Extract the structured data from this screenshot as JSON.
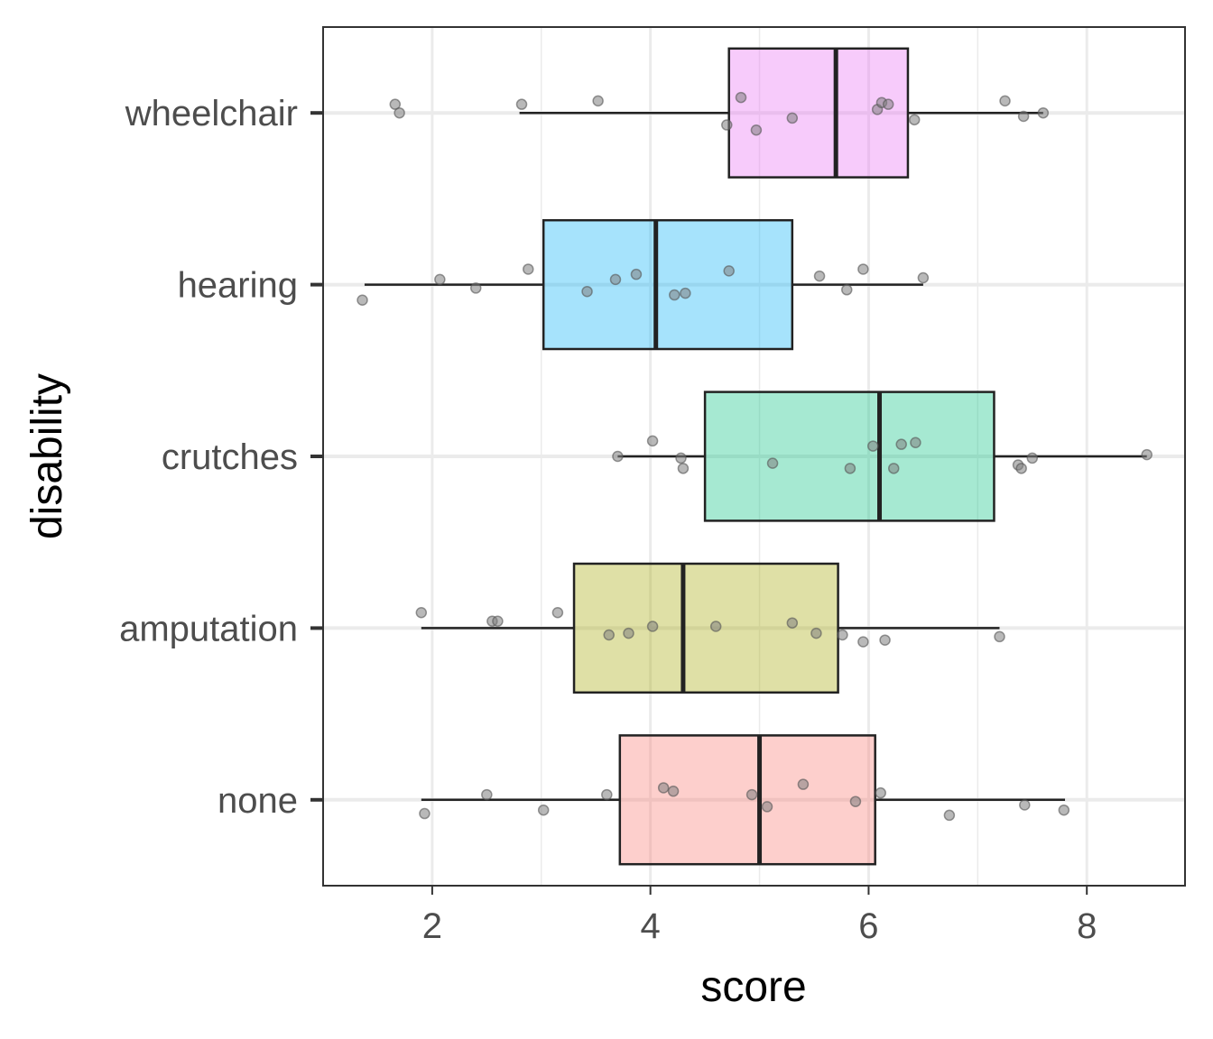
{
  "chart_data": {
    "type": "boxplot",
    "orientation": "horizontal",
    "xlabel": "score",
    "ylabel": "disability",
    "xlim": [
      1.0,
      8.9
    ],
    "xticks": [
      2,
      4,
      6,
      8
    ],
    "grid": true,
    "legend": "none",
    "categories": [
      "none",
      "amputation",
      "crutches",
      "hearing",
      "wheelchair"
    ],
    "series": [
      {
        "category": "none",
        "color": "#F8766D",
        "box": {
          "min": 1.9,
          "q1": 3.72,
          "median": 5.0,
          "q3": 6.06,
          "max": 7.8
        },
        "points": [
          [
            1.93,
            -0.08
          ],
          [
            2.5,
            0.03
          ],
          [
            3.02,
            -0.06
          ],
          [
            3.6,
            0.03
          ],
          [
            4.12,
            0.07
          ],
          [
            4.21,
            0.05
          ],
          [
            4.93,
            0.03
          ],
          [
            5.07,
            -0.04
          ],
          [
            5.4,
            0.09
          ],
          [
            5.88,
            -0.01
          ],
          [
            6.11,
            0.04
          ],
          [
            6.74,
            -0.09
          ],
          [
            7.43,
            -0.03
          ],
          [
            7.79,
            -0.06
          ]
        ]
      },
      {
        "category": "amputation",
        "color": "#A3A500",
        "box": {
          "min": 1.9,
          "q1": 3.3,
          "median": 4.3,
          "q3": 5.72,
          "max": 7.2
        },
        "points": [
          [
            1.9,
            0.09
          ],
          [
            2.55,
            0.04
          ],
          [
            2.6,
            0.04
          ],
          [
            3.15,
            0.09
          ],
          [
            3.62,
            -0.04
          ],
          [
            3.8,
            -0.03
          ],
          [
            4.02,
            0.01
          ],
          [
            4.6,
            0.01
          ],
          [
            5.3,
            0.03
          ],
          [
            5.52,
            -0.03
          ],
          [
            5.76,
            -0.04
          ],
          [
            5.95,
            -0.08
          ],
          [
            6.15,
            -0.07
          ],
          [
            7.2,
            -0.05
          ]
        ]
      },
      {
        "category": "crutches",
        "color": "#00BF7D",
        "box": {
          "min": 3.7,
          "q1": 4.5,
          "median": 6.1,
          "q3": 7.15,
          "max": 8.55
        },
        "points": [
          [
            3.7,
            0.0
          ],
          [
            4.02,
            0.09
          ],
          [
            4.28,
            -0.01
          ],
          [
            4.3,
            -0.07
          ],
          [
            5.12,
            -0.04
          ],
          [
            5.83,
            -0.07
          ],
          [
            6.04,
            0.06
          ],
          [
            6.23,
            -0.07
          ],
          [
            6.3,
            0.07
          ],
          [
            6.43,
            0.08
          ],
          [
            7.37,
            -0.05
          ],
          [
            7.4,
            -0.07
          ],
          [
            7.5,
            -0.01
          ],
          [
            8.55,
            0.01
          ]
        ]
      },
      {
        "category": "hearing",
        "color": "#00B0F6",
        "box": {
          "min": 1.38,
          "q1": 3.02,
          "median": 4.05,
          "q3": 5.3,
          "max": 6.5
        },
        "points": [
          [
            1.36,
            -0.09
          ],
          [
            2.07,
            0.03
          ],
          [
            2.4,
            -0.02
          ],
          [
            2.88,
            0.09
          ],
          [
            3.42,
            -0.04
          ],
          [
            3.68,
            0.03
          ],
          [
            3.87,
            0.06
          ],
          [
            4.22,
            -0.06
          ],
          [
            4.32,
            -0.05
          ],
          [
            4.72,
            0.08
          ],
          [
            5.55,
            0.05
          ],
          [
            5.8,
            -0.03
          ],
          [
            5.95,
            0.09
          ],
          [
            6.5,
            0.04
          ]
        ]
      },
      {
        "category": "wheelchair",
        "color": "#E76BF3",
        "box": {
          "min": 2.8,
          "q1": 4.72,
          "median": 5.7,
          "q3": 6.36,
          "max": 7.6
        },
        "points": [
          [
            1.66,
            0.05
          ],
          [
            1.7,
            0.0
          ],
          [
            2.82,
            0.05
          ],
          [
            3.52,
            0.07
          ],
          [
            4.7,
            -0.07
          ],
          [
            4.83,
            0.09
          ],
          [
            4.97,
            -0.1
          ],
          [
            5.3,
            -0.03
          ],
          [
            6.08,
            0.02
          ],
          [
            6.12,
            0.06
          ],
          [
            6.18,
            0.05
          ],
          [
            6.42,
            -0.04
          ],
          [
            7.25,
            0.07
          ],
          [
            7.42,
            -0.02
          ],
          [
            7.6,
            0.0
          ]
        ]
      }
    ]
  }
}
